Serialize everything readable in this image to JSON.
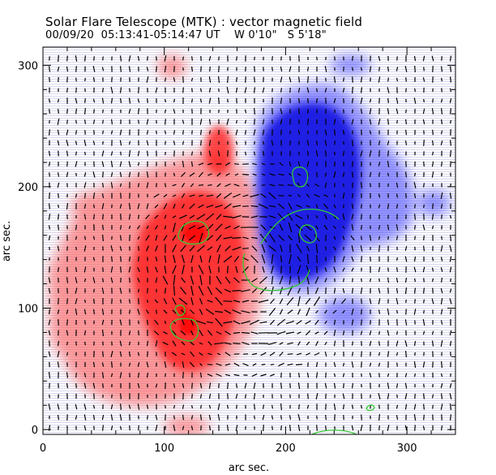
{
  "header": {
    "title": "Solar Flare Telescope (MTK) : vector magnetic field",
    "subtitle": "00/09/20  05:13:41-05:14:47 UT    W 0'10\"   S 5'18\""
  },
  "axes": {
    "xlabel": "arc sec.",
    "ylabel": "arc sec.",
    "xlim": [
      0,
      340
    ],
    "ylim": [
      -4,
      315
    ],
    "x_ticks": [
      0,
      100,
      200,
      300
    ],
    "y_ticks": [
      0,
      100,
      200,
      300
    ],
    "x_tick_labels": [
      "0",
      "100",
      "200",
      "300"
    ],
    "y_tick_labels": [
      "0",
      "100",
      "200",
      "300"
    ]
  },
  "colors": {
    "positive_polarity": "#ff2a2a",
    "negative_polarity": "#2020e8",
    "contour": "#33cc33",
    "vectors": "#000000",
    "axes": "#000000"
  }
}
